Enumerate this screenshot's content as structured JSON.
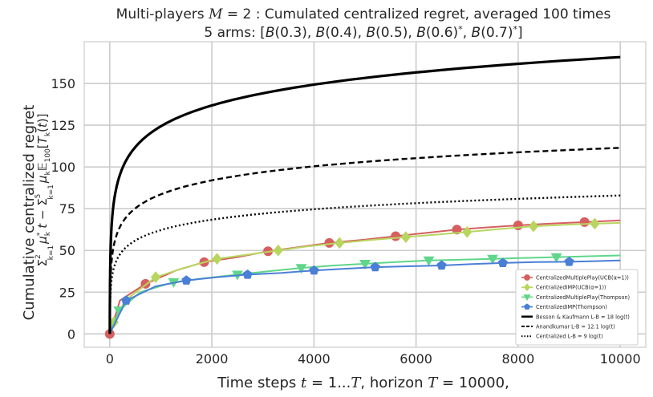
{
  "chart_data": {
    "type": "line",
    "title": "Multi-players M = 2 : Cumulated centralized regret, averaged 100 times",
    "subtitle": "5 arms: [B(0.3), B(0.4), B(0.5), B(0.6)*, B(0.7)*]",
    "xlabel": "Time steps t = 1...T, horizon T = 10000,",
    "ylabel": "Cumulative centralized regret",
    "ylabel_formula": "Σ_{k=1}^{2} μ_k* t − Σ_{k=1}^{5} μ_k E_100[T_k(t)]",
    "xlim": [
      -500,
      10500
    ],
    "ylim": [
      -8,
      175
    ],
    "xticks": [
      0,
      2000,
      4000,
      6000,
      8000,
      10000
    ],
    "yticks": [
      0,
      25,
      50,
      75,
      100,
      125,
      150
    ],
    "grid": true,
    "legend_position": "bottom-right",
    "series": [
      {
        "name": "CentralizedMultiplePlay(UCB(α=1))",
        "color": "#d65f5f",
        "marker": "circle",
        "x": [
          0,
          200,
          700,
          1300,
          1850,
          2500,
          3100,
          3700,
          4300,
          5000,
          5600,
          6200,
          6800,
          7400,
          8000,
          8600,
          9300,
          10000
        ],
        "y": [
          0,
          20,
          30,
          38,
          43,
          46,
          49.5,
          52,
          54.5,
          56.5,
          58.5,
          60.5,
          62.5,
          63.8,
          65,
          66,
          67,
          68
        ],
        "markers_x": [
          0,
          700,
          1850,
          3100,
          4300,
          5600,
          6800,
          8000,
          9300
        ],
        "markers_y": [
          0,
          30,
          43,
          49.5,
          54.5,
          58.5,
          62.5,
          65,
          67
        ]
      },
      {
        "name": "CentralizedIMP(UCB(α=1))",
        "color": "#b8d65f",
        "marker": "diamond",
        "x": [
          0,
          80,
          300,
          900,
          1500,
          2100,
          2700,
          3300,
          3900,
          4500,
          5200,
          5800,
          6400,
          7000,
          7700,
          8300,
          9000,
          9500,
          10000
        ],
        "y": [
          0,
          7,
          20,
          34,
          40,
          45,
          47.5,
          50,
          52.5,
          54.5,
          56.5,
          58,
          59.5,
          61,
          63,
          64.5,
          65.5,
          66,
          66.5
        ],
        "markers_x": [
          80,
          900,
          2100,
          3300,
          4500,
          5800,
          7000,
          8300,
          9500
        ],
        "markers_y": [
          7,
          34,
          45,
          50,
          54.5,
          58,
          61,
          64.5,
          66
        ]
      },
      {
        "name": "CentralizedMultiplePlay(Thompson)",
        "color": "#5fd68a",
        "marker": "triangle-down",
        "x": [
          0,
          180,
          600,
          1250,
          1900,
          2500,
          3100,
          3750,
          4400,
          5000,
          5600,
          6250,
          6900,
          7500,
          8100,
          8750,
          9400,
          10000
        ],
        "y": [
          0,
          14,
          25,
          31,
          33.5,
          35.5,
          37.5,
          39.5,
          41,
          42,
          43,
          44,
          44.5,
          45,
          45.5,
          46,
          46.5,
          47
        ],
        "markers_x": [
          180,
          1250,
          2500,
          3750,
          5000,
          6250,
          7500,
          8750
        ],
        "markers_y": [
          14,
          31,
          35.5,
          39.5,
          42,
          44,
          45,
          46
        ]
      },
      {
        "name": "CentralizedIMP(Thompson)",
        "color": "#4a7fd6",
        "marker": "pentagon",
        "x": [
          0,
          320,
          900,
          1500,
          2100,
          2700,
          3350,
          4000,
          4600,
          5200,
          5850,
          6500,
          7100,
          7700,
          8350,
          9000,
          9500,
          10000
        ],
        "y": [
          0,
          20,
          28.5,
          32,
          34,
          35.5,
          36.5,
          38,
          39,
          40,
          40.5,
          41,
          41.8,
          42.5,
          43,
          43.2,
          43.6,
          44
        ],
        "markers_x": [
          320,
          1500,
          2700,
          4000,
          5200,
          6500,
          7700,
          9000
        ],
        "markers_y": [
          20,
          32,
          35.5,
          38,
          40,
          41,
          42.5,
          43.2
        ]
      },
      {
        "name": "Besson & Kaufmann L-B = 18 log(t)",
        "color": "#000000",
        "style": "solid",
        "function": "log",
        "coefficient": 18
      },
      {
        "name": "Anandkumar L-B = 12.1 log(t)",
        "color": "#000000",
        "style": "dashed",
        "function": "log",
        "coefficient": 12.1
      },
      {
        "name": "Centralized L-B = 9 log(t)",
        "color": "#000000",
        "style": "dotted",
        "function": "log",
        "coefficient": 9
      }
    ]
  }
}
